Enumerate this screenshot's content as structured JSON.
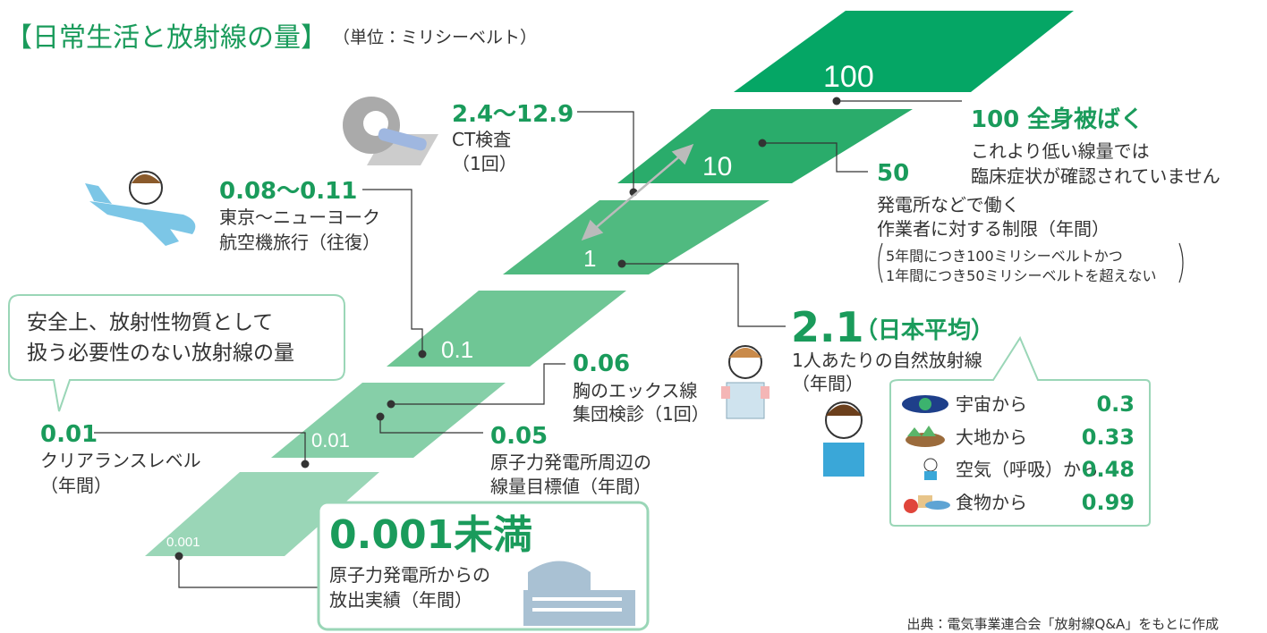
{
  "header": {
    "title": "【日常生活と放射線の量】",
    "unit": "（単位：ミリシーベルト）"
  },
  "steps": [
    "100",
    "10",
    "1",
    "0.1",
    "0.01",
    "0.001"
  ],
  "callouts": {
    "whole_body": {
      "value": "100",
      "label": "全身被ばく",
      "lines": [
        "これより低い線量では",
        "臨床症状が確認されていません"
      ]
    },
    "worker": {
      "value": "50",
      "lines": [
        "発電所などで働く",
        "作業者に対する制限（年間）"
      ],
      "note": [
        "5年間につき100ミリシーベルトかつ",
        "1年間につき50ミリシーベルトを超えない"
      ]
    },
    "ct": {
      "value": "2.4～12.9",
      "lines": [
        "CT検査",
        "（1回）"
      ]
    },
    "flight": {
      "value": "0.08～0.11",
      "lines": [
        "東京～ニューヨーク",
        "航空機旅行（往復）"
      ]
    },
    "natural": {
      "value": "2.1",
      "label": "（日本平均）",
      "lines": [
        "1人あたりの自然放射線",
        "（年間）"
      ]
    },
    "xray": {
      "value": "0.06",
      "lines": [
        "胸のエックス線",
        "集団検診（1回）"
      ]
    },
    "plant_target": {
      "value": "0.05",
      "lines": [
        "原子力発電所周辺の",
        "線量目標値（年間）"
      ]
    },
    "clearance": {
      "value": "0.01",
      "lines": [
        "クリアランスレベル",
        "（年間）"
      ]
    }
  },
  "breakdown": [
    {
      "label": "宇宙から",
      "value": "0.3"
    },
    {
      "label": "大地から",
      "value": "0.33"
    },
    {
      "label": "空気（呼吸）から",
      "value": "0.48"
    },
    {
      "label": "食物から",
      "value": "0.99"
    }
  ],
  "bubble": {
    "lines": [
      "安全上、放射性物質として",
      "扱う必要性のない放射線の量"
    ]
  },
  "highlight": {
    "value": "0.001未満",
    "lines": [
      "原子力発電所からの",
      "放出実績（年間）"
    ]
  },
  "source": "出典：電気事業連合会「放射線Q&A」をもとに作成"
}
